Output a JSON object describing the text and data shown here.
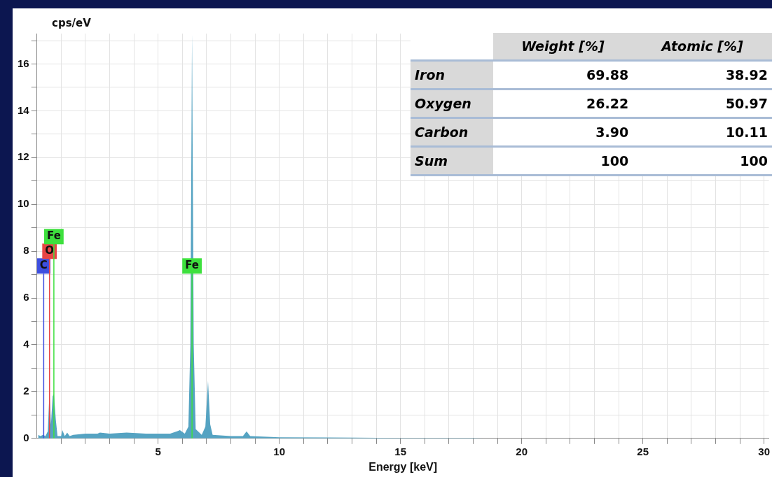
{
  "chart_data": {
    "type": "area",
    "xlabel": "Energy [keV]",
    "ylabel": "cps/eV",
    "xlim": [
      0,
      30.2
    ],
    "ylim": [
      0,
      17.3
    ],
    "xticks": [
      {
        "value": 1,
        "label": null
      },
      {
        "value": 2,
        "label": null
      },
      {
        "value": 3,
        "label": null
      },
      {
        "value": 4,
        "label": null
      },
      5,
      {
        "value": 6,
        "label": null
      },
      {
        "value": 7,
        "label": null
      },
      {
        "value": 8,
        "label": null
      },
      {
        "value": 9,
        "label": null
      },
      10,
      {
        "value": 11,
        "label": null
      },
      {
        "value": 12,
        "label": null
      },
      {
        "value": 13,
        "label": null
      },
      {
        "value": 14,
        "label": null
      },
      15,
      {
        "value": 16,
        "label": null
      },
      {
        "value": 17,
        "label": null
      },
      {
        "value": 18,
        "label": null
      },
      {
        "value": 19,
        "label": null
      },
      20,
      {
        "value": 21,
        "label": null
      },
      {
        "value": 22,
        "label": null
      },
      {
        "value": 23,
        "label": null
      },
      {
        "value": 24,
        "label": null
      },
      25,
      {
        "value": 26,
        "label": null
      },
      {
        "value": 27,
        "label": null
      },
      {
        "value": 28,
        "label": null
      },
      {
        "value": 29,
        "label": null
      },
      30
    ],
    "yticks": [
      0,
      {
        "value": 1,
        "label": null
      },
      2,
      {
        "value": 3,
        "label": null
      },
      4,
      {
        "value": 5,
        "label": null
      },
      6,
      {
        "value": 7,
        "label": null
      },
      8,
      {
        "value": 9,
        "label": null
      },
      10,
      {
        "value": 11,
        "label": null
      },
      12,
      {
        "value": 13,
        "label": null
      },
      14,
      {
        "value": 15,
        "label": null
      },
      16,
      {
        "value": 17,
        "label": null
      }
    ],
    "grid": true,
    "legend": false,
    "series": [
      {
        "color": "#55a3c2",
        "x": [
          0.05,
          0.15,
          0.25,
          0.35,
          0.45,
          0.52,
          0.58,
          0.65,
          0.7,
          0.78,
          0.85,
          1.0,
          1.05,
          1.15,
          1.25,
          1.35,
          1.5,
          2.0,
          2.5,
          2.6,
          3.0,
          3.7,
          4.5,
          5.5,
          5.9,
          6.1,
          6.25,
          6.33,
          6.4,
          6.47,
          6.55,
          6.8,
          6.95,
          7.06,
          7.15,
          7.25,
          8.0,
          8.5,
          8.65,
          8.8,
          9.5,
          10,
          12,
          15,
          18,
          18.4
        ],
        "values": [
          0.15,
          0.1,
          0.15,
          0.1,
          0.3,
          2.0,
          0.6,
          1.8,
          1.9,
          0.8,
          0.1,
          0.1,
          0.35,
          0.1,
          0.25,
          0.1,
          0.15,
          0.2,
          0.2,
          0.25,
          0.2,
          0.25,
          0.2,
          0.2,
          0.35,
          0.2,
          0.5,
          4,
          17.3,
          4,
          0.4,
          0.15,
          0.5,
          2.45,
          0.6,
          0.15,
          0.1,
          0.1,
          0.3,
          0.1,
          0.07,
          0.05,
          0.04,
          0.02,
          0.02,
          0
        ]
      }
    ],
    "ref_lines": [
      {
        "axis": "x",
        "value": 0.28,
        "label": "C",
        "color": "#3d4fe0"
      },
      {
        "axis": "x",
        "value": 0.52,
        "label": "O",
        "color": "#e84545"
      },
      {
        "axis": "x",
        "value": 0.7,
        "label": "Fe",
        "color": "#3ee03e"
      },
      {
        "axis": "x",
        "value": 6.4,
        "label": "Fe",
        "color": "#3ee03e"
      }
    ],
    "annotations": [
      "Weight [%]",
      "Atomic [%]",
      "Iron",
      "69.88",
      "38.92",
      "Oxygen",
      "26.22",
      "50.97",
      "Carbon",
      "3.90",
      "10.11",
      "Sum",
      "100",
      "100"
    ]
  }
}
